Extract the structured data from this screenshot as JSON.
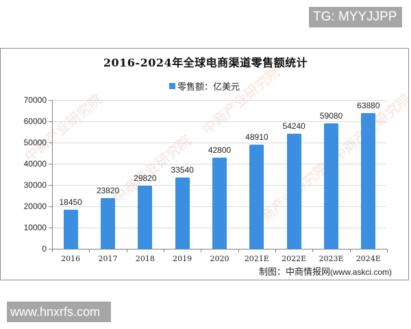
{
  "badges": {
    "top_right": "TG: MYYJJPP",
    "bottom_left": "www.hnxrfs.com"
  },
  "chart": {
    "title": "2016-2024年全球电商渠道零售额统计",
    "legend_label": "零售额：亿美元",
    "source_cn": "制图：中商情报网",
    "source_en": "(www.askci.com)",
    "watermark": "中商产业研究院",
    "y_ticks": [
      "0",
      "10000",
      "20000",
      "30000",
      "40000",
      "50000",
      "60000",
      "70000"
    ]
  },
  "colors": {
    "bar": "#3c8fe0",
    "badge_bg": "#a6a6a6",
    "grid": "#d9d9d9"
  },
  "chart_data": {
    "type": "bar",
    "title": "2016-2024年全球电商渠道零售额统计",
    "xlabel": "",
    "ylabel": "",
    "categories": [
      "2016",
      "2017",
      "2018",
      "2019",
      "2020",
      "2021E",
      "2022E",
      "2023E",
      "2024E"
    ],
    "series": [
      {
        "name": "零售额：亿美元",
        "values": [
          18450,
          23820,
          29820,
          33540,
          42800,
          48910,
          54240,
          59080,
          63880
        ]
      }
    ],
    "values": [
      18450,
      23820,
      29820,
      33540,
      42800,
      48910,
      54240,
      59080,
      63880
    ],
    "data_labels": [
      "18450",
      "23820",
      "29820",
      "33540",
      "42800",
      "48910",
      "54240",
      "59080",
      "63880"
    ],
    "ylim": [
      0,
      70000
    ],
    "yticks": [
      0,
      10000,
      20000,
      30000,
      40000,
      50000,
      60000,
      70000
    ],
    "grid": true,
    "legend_position": "top"
  }
}
